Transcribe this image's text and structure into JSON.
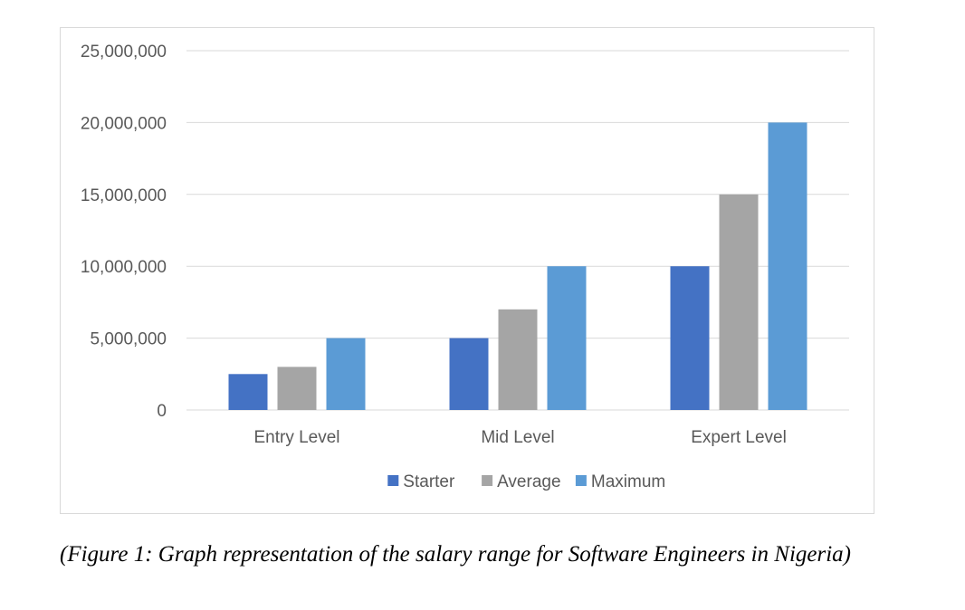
{
  "chart_data": {
    "type": "bar",
    "categories": [
      "Entry Level",
      "Mid Level",
      "Expert Level"
    ],
    "series": [
      {
        "name": "Starter",
        "values": [
          2500000,
          5000000,
          10000000
        ],
        "color": "#4472C4"
      },
      {
        "name": "Average",
        "values": [
          3000000,
          7000000,
          15000000
        ],
        "color": "#A5A5A5"
      },
      {
        "name": "Maximum",
        "values": [
          5000000,
          10000000,
          20000000
        ],
        "color": "#5B9BD5"
      }
    ],
    "ylim": [
      0,
      25000000
    ],
    "yticks": [
      0,
      5000000,
      10000000,
      15000000,
      20000000,
      25000000
    ],
    "ytick_labels": [
      "0",
      "5,000,000",
      "10,000,000",
      "15,000,000",
      "20,000,000",
      "25,000,000"
    ],
    "grid": true,
    "legend": "bottom",
    "title": "",
    "xlabel": "",
    "ylabel": ""
  },
  "caption": "(Figure 1: Graph representation of the salary range for Software Engineers in Nigeria)"
}
